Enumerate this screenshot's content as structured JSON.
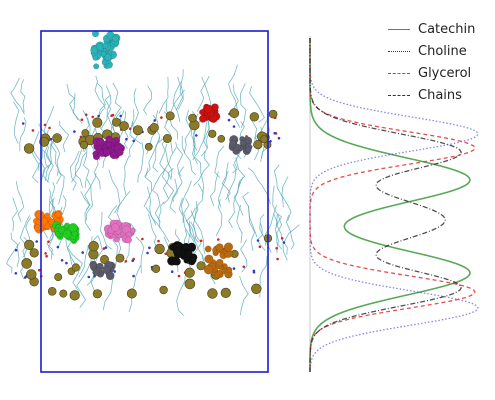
{
  "legend": {
    "entries": [
      {
        "label": "Catechin",
        "color": "#3a9a3a",
        "style": "solid"
      },
      {
        "label": "Choline",
        "color": "#2222dd",
        "style": "dotted"
      },
      {
        "label": "Glycerol",
        "color": "#e03030",
        "style": "dashed"
      },
      {
        "label": "Chains",
        "color": "#333333",
        "style": "dashdot"
      }
    ]
  },
  "colors": {
    "box": "#1c1cd0",
    "lipid_tails": "#4aa3b5",
    "headgroup_beads": "#8a7a2a",
    "catechin_molecules": [
      "#2bb3b8",
      "#8e1a8e",
      "#ff7700",
      "#22cc22",
      "#e070c0",
      "#111111",
      "#b86a10",
      "#cc1111",
      "#5a5a6a"
    ]
  },
  "icons": [
    "simulation-box",
    "lipid-bilayer",
    "density-profile"
  ]
}
